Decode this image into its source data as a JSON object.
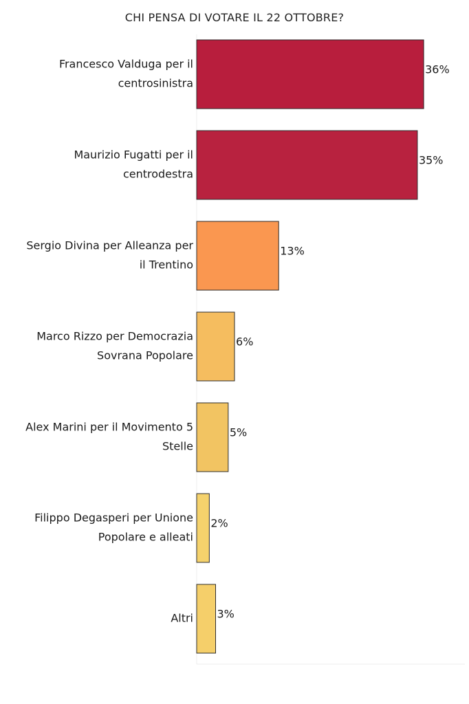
{
  "chart_data": {
    "type": "bar",
    "orientation": "horizontal",
    "title": "CHI PENSA DI VOTARE IL 22  OTTOBRE?",
    "categories": [
      [
        "Francesco Valduga per il",
        "centrosinistra"
      ],
      [
        "Maurizio Fugatti per il",
        "centrodestra"
      ],
      [
        "Sergio Divina per Alleanza per",
        "il Trentino"
      ],
      [
        "Marco Rizzo per Democrazia",
        "Sovrana Popolare"
      ],
      [
        "Alex Marini per il Movimento 5",
        "Stelle"
      ],
      [
        "Filippo Degasperi per Unione",
        "Popolare e alleati"
      ],
      [
        "Altri"
      ]
    ],
    "values": [
      36,
      35,
      13,
      6,
      5,
      2,
      3
    ],
    "value_labels": [
      "36%",
      "35%",
      "13%",
      "6%",
      "5%",
      "2%",
      "3%"
    ],
    "colors": [
      "#b81e3d",
      "#b8223f",
      "#fa9750",
      "#f5bd5f",
      "#f2c462",
      "#f5d26c",
      "#f5cf6a"
    ],
    "xlim": [
      0,
      40
    ],
    "grid": false,
    "legend": "none"
  }
}
